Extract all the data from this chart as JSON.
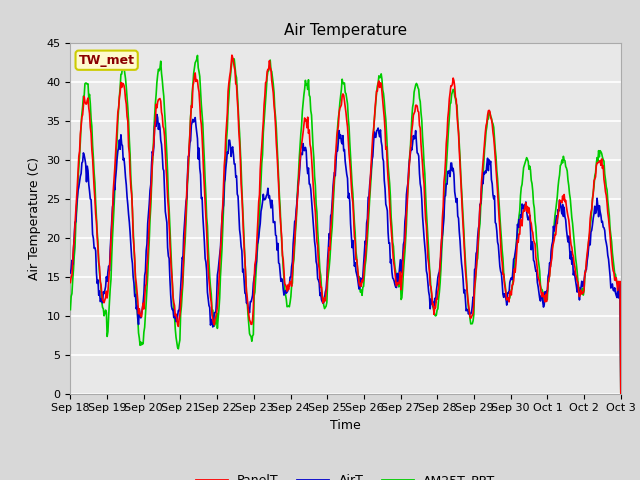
{
  "title": "Air Temperature",
  "ylabel": "Air Temperature (C)",
  "xlabel": "Time",
  "ylim": [
    0,
    45
  ],
  "yticks": [
    0,
    5,
    10,
    15,
    20,
    25,
    30,
    35,
    40,
    45
  ],
  "annotation_text": "TW_met",
  "annotation_color": "#8B0000",
  "annotation_bg": "#FFFACD",
  "annotation_edge": "#CCCC00",
  "line_colors": {
    "PanelT": "#FF0000",
    "AirT": "#0000CC",
    "AM25T_PRT": "#00CC00"
  },
  "xtick_labels": [
    "Sep 18",
    "Sep 19",
    "Sep 20",
    "Sep 21",
    "Sep 22",
    "Sep 23",
    "Sep 24",
    "Sep 25",
    "Sep 26",
    "Sep 27",
    "Sep 28",
    "Sep 29",
    "Sep 30",
    "Oct 1",
    "Oct 2",
    "Oct 3"
  ],
  "fig_bg": "#D8D8D8",
  "plot_bg": "#E8E8E8",
  "grid_color": "#FFFFFF",
  "title_fontsize": 11,
  "axis_label_fontsize": 9,
  "tick_fontsize": 8,
  "legend_fontsize": 9,
  "n_days": 15,
  "panel_peaks": [
    38,
    40,
    38,
    41,
    43,
    42,
    35,
    38,
    40,
    37,
    40,
    36,
    24,
    25,
    30,
    16
  ],
  "panel_troughs": [
    12,
    10,
    9,
    9,
    9,
    13,
    12,
    14,
    14,
    11,
    10,
    12,
    12,
    13,
    14,
    14
  ],
  "air_peaks": [
    30,
    32,
    35,
    35,
    32,
    26,
    31,
    33,
    34,
    33,
    29,
    30,
    24,
    24,
    24,
    16
  ],
  "air_troughs": [
    12,
    10,
    9,
    9,
    11,
    13,
    12,
    14,
    14,
    11,
    10,
    12,
    12,
    13,
    13,
    14
  ],
  "am25_peaks": [
    40,
    42,
    42,
    43,
    43,
    42,
    40,
    40,
    41,
    40,
    39,
    36,
    30,
    30,
    31,
    17
  ],
  "am25_troughs": [
    10,
    6,
    6,
    9,
    7,
    11,
    11,
    13,
    14,
    10,
    9,
    12,
    12,
    13,
    14,
    14
  ]
}
